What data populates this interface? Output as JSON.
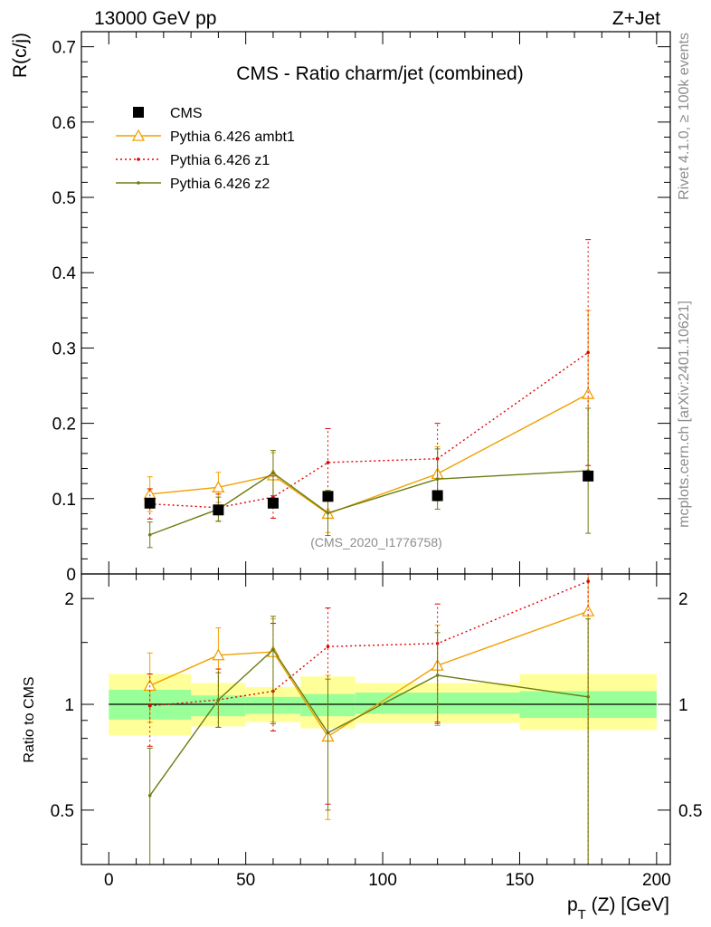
{
  "header": {
    "left": "13000 GeV pp",
    "right": "Z+Jet"
  },
  "side_labels": {
    "rivet": "Rivet 4.1.0, ≥ 100k events",
    "mcplots": "mcplots.cern.ch [arXiv:2401.10621]"
  },
  "colors": {
    "cms": "#000000",
    "ambt1": "#f0a000",
    "z1": "#e00000",
    "z2": "#6b7d10",
    "band_inner": "#99ff99",
    "band_outer": "#ffff99"
  },
  "chart_data": [
    {
      "type": "scatter",
      "panel": "main",
      "title": "CMS - Ratio charm/jet (combined)",
      "watermark": "(CMS_2020_I1776758)",
      "xlabel": "p_T (Z) [GeV]",
      "ylabel": "R(c/j)",
      "xlim": [
        -10,
        205
      ],
      "ylim": [
        0,
        0.72
      ],
      "yticks": [
        0,
        0.1,
        0.2,
        0.3,
        0.4,
        0.5,
        0.6,
        0.7
      ],
      "ytick_labels": [
        "0",
        "0.1",
        "0.2",
        "0.3",
        "0.4",
        "0.5",
        "0.6",
        "0.7"
      ],
      "legend_position": "top-left",
      "series": [
        {
          "name": "CMS",
          "key": "cms",
          "style": "markers",
          "x": [
            15,
            40,
            60,
            80,
            120,
            175
          ],
          "y": [
            0.094,
            0.085,
            0.094,
            0.103,
            0.104,
            0.13
          ],
          "err": [
            0.005,
            0.005,
            0.005,
            0.005,
            0.005,
            0.005
          ]
        },
        {
          "name": "Pythia 6.426 ambt1",
          "key": "ambt1",
          "style": "solid-triangle",
          "x": [
            15,
            40,
            60,
            80,
            120,
            175
          ],
          "y": [
            0.106,
            0.115,
            0.131,
            0.08,
            0.133,
            0.239
          ],
          "err": [
            0.023,
            0.02,
            0.03,
            0.025,
            0.036,
            0.111
          ]
        },
        {
          "name": "Pythia 6.426 z1",
          "key": "z1",
          "style": "dotted",
          "x": [
            15,
            40,
            60,
            80,
            120,
            175
          ],
          "y": [
            0.093,
            0.088,
            0.102,
            0.148,
            0.153,
            0.294
          ],
          "err": [
            0.02,
            0.018,
            0.028,
            0.045,
            0.047,
            0.15
          ]
        },
        {
          "name": "Pythia 6.426 z2",
          "key": "z2",
          "style": "solid-dot",
          "x": [
            15,
            40,
            60,
            80,
            120,
            175
          ],
          "y": [
            0.052,
            0.086,
            0.134,
            0.081,
            0.126,
            0.137
          ],
          "err": [
            0.017,
            0.016,
            0.03,
            0.03,
            0.04,
            0.083
          ]
        }
      ]
    },
    {
      "type": "scatter",
      "panel": "ratio",
      "ylabel": "Ratio to CMS",
      "xlabel": "p_T (Z) [GeV]",
      "xlim": [
        -10,
        205
      ],
      "ylim": [
        0.35,
        2.35
      ],
      "yscale": "log",
      "xticks": [
        0,
        50,
        100,
        150,
        200
      ],
      "xtick_labels": [
        "0",
        "50",
        "100",
        "150",
        "200"
      ],
      "yticks": [
        0.5,
        1,
        2
      ],
      "ytick_labels": [
        "0.5",
        "1",
        "2"
      ],
      "bands": [
        {
          "x0": 0,
          "x1": 30,
          "inner": [
            0.905,
            1.1
          ],
          "outer": [
            0.815,
            1.22
          ]
        },
        {
          "x0": 30,
          "x1": 50,
          "inner": [
            0.925,
            1.06
          ],
          "outer": [
            0.865,
            1.15
          ]
        },
        {
          "x0": 50,
          "x1": 70,
          "inner": [
            0.94,
            1.05
          ],
          "outer": [
            0.89,
            1.12
          ]
        },
        {
          "x0": 70,
          "x1": 90,
          "inner": [
            0.925,
            1.07
          ],
          "outer": [
            0.855,
            1.2
          ]
        },
        {
          "x0": 90,
          "x1": 150,
          "inner": [
            0.94,
            1.08
          ],
          "outer": [
            0.885,
            1.15
          ]
        },
        {
          "x0": 150,
          "x1": 200,
          "inner": [
            0.915,
            1.09
          ],
          "outer": [
            0.845,
            1.22
          ]
        }
      ],
      "series": [
        {
          "name": "Pythia 6.426 ambt1",
          "key": "ambt1",
          "style": "solid-triangle",
          "x": [
            15,
            40,
            60,
            80,
            120,
            175
          ],
          "y": [
            1.13,
            1.38,
            1.41,
            0.81,
            1.29,
            1.84
          ],
          "lo": [
            0.89,
            0.86,
            0.89,
            0.47,
            0.87,
            0.35
          ],
          "hi": [
            1.4,
            1.65,
            1.75,
            1.21,
            1.68,
            2.35
          ]
        },
        {
          "name": "Pythia 6.426 z1",
          "key": "z1",
          "style": "dotted",
          "x": [
            15,
            40,
            60,
            80,
            120,
            175
          ],
          "y": [
            0.99,
            1.03,
            1.09,
            1.46,
            1.49,
            2.24
          ],
          "lo": [
            0.76,
            0.86,
            0.84,
            0.52,
            0.89,
            0.35
          ],
          "hi": [
            1.22,
            1.26,
            1.7,
            1.88,
            1.93,
            2.35
          ]
        },
        {
          "name": "Pythia 6.426 z2",
          "key": "z2",
          "style": "solid-dot",
          "x": [
            15,
            40,
            60,
            80,
            120,
            175
          ],
          "y": [
            0.55,
            1.03,
            1.43,
            0.83,
            1.21,
            1.05
          ],
          "lo": [
            0.35,
            0.86,
            0.88,
            0.5,
            0.88,
            0.35
          ],
          "hi": [
            0.75,
            1.23,
            1.78,
            1.18,
            1.6,
            1.75
          ]
        }
      ]
    }
  ]
}
